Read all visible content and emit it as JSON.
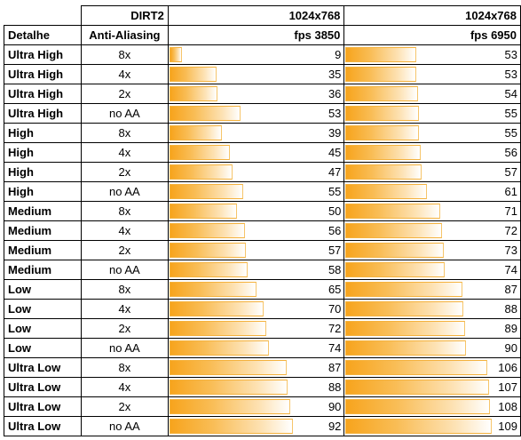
{
  "header": {
    "game": "DIRT2",
    "resolution_1": "1024x768",
    "resolution_2": "1024x768",
    "col_detail": "Detalhe",
    "col_aa": "Anti-Aliasing",
    "col_fps_1": "fps 3850",
    "col_fps_2": "fps 6950"
  },
  "chart_data": {
    "type": "table",
    "title": "DIRT2",
    "columns": [
      "Detalhe",
      "Anti-Aliasing",
      "fps 3850",
      "fps 6950"
    ],
    "bar_max": 109,
    "rows": [
      {
        "detail": "Ultra High",
        "aa": "8x",
        "fps_3850": 9,
        "fps_6950": 53
      },
      {
        "detail": "Ultra High",
        "aa": "4x",
        "fps_3850": 35,
        "fps_6950": 53
      },
      {
        "detail": "Ultra High",
        "aa": "2x",
        "fps_3850": 36,
        "fps_6950": 54
      },
      {
        "detail": "Ultra High",
        "aa": "no AA",
        "fps_3850": 53,
        "fps_6950": 55
      },
      {
        "detail": "High",
        "aa": "8x",
        "fps_3850": 39,
        "fps_6950": 55
      },
      {
        "detail": "High",
        "aa": "4x",
        "fps_3850": 45,
        "fps_6950": 56
      },
      {
        "detail": "High",
        "aa": "2x",
        "fps_3850": 47,
        "fps_6950": 57
      },
      {
        "detail": "High",
        "aa": "no AA",
        "fps_3850": 55,
        "fps_6950": 61
      },
      {
        "detail": "Medium",
        "aa": "8x",
        "fps_3850": 50,
        "fps_6950": 71
      },
      {
        "detail": "Medium",
        "aa": "4x",
        "fps_3850": 56,
        "fps_6950": 72
      },
      {
        "detail": "Medium",
        "aa": "2x",
        "fps_3850": 57,
        "fps_6950": 73
      },
      {
        "detail": "Medium",
        "aa": "no AA",
        "fps_3850": 58,
        "fps_6950": 74
      },
      {
        "detail": "Low",
        "aa": "8x",
        "fps_3850": 65,
        "fps_6950": 87
      },
      {
        "detail": "Low",
        "aa": "4x",
        "fps_3850": 70,
        "fps_6950": 88
      },
      {
        "detail": "Low",
        "aa": "2x",
        "fps_3850": 72,
        "fps_6950": 89
      },
      {
        "detail": "Low",
        "aa": "no AA",
        "fps_3850": 74,
        "fps_6950": 90
      },
      {
        "detail": "Ultra Low",
        "aa": "8x",
        "fps_3850": 87,
        "fps_6950": 106
      },
      {
        "detail": "Ultra Low",
        "aa": "4x",
        "fps_3850": 88,
        "fps_6950": 107
      },
      {
        "detail": "Ultra Low",
        "aa": "2x",
        "fps_3850": 90,
        "fps_6950": 108
      },
      {
        "detail": "Ultra Low",
        "aa": "no AA",
        "fps_3850": 92,
        "fps_6950": 109
      }
    ]
  },
  "colors": {
    "bar_start": "#f7a41d",
    "bar_mid": "#f9bd56",
    "bar_end": "#ffffff",
    "bar_border": "#f4b23e",
    "grid": "#000000"
  }
}
